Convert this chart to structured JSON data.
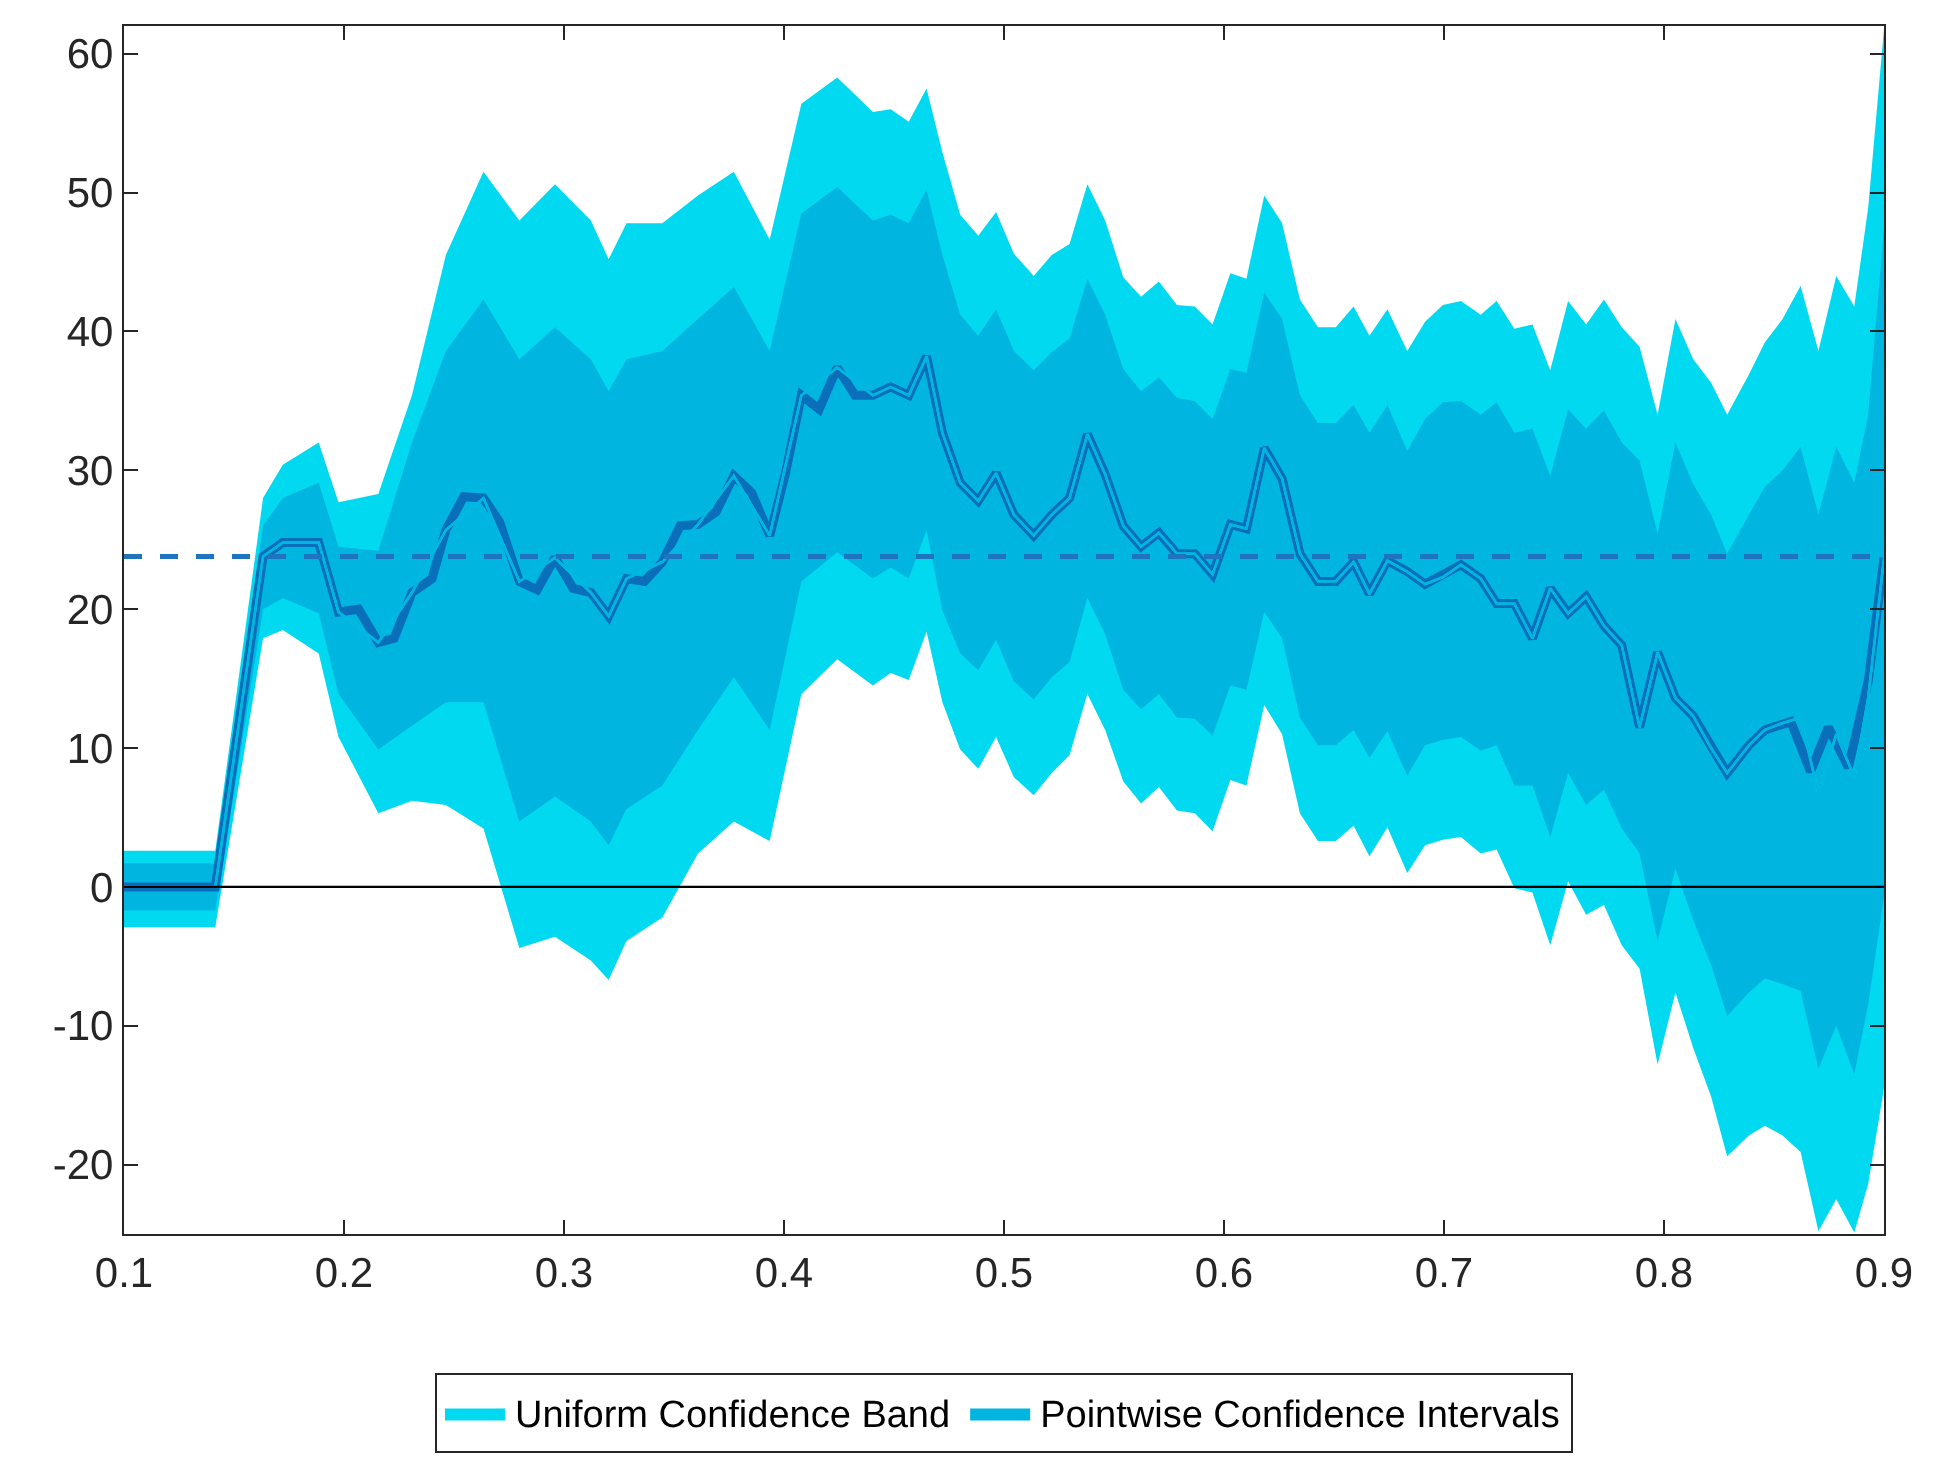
{
  "chart_data": {
    "type": "line",
    "xlim": [
      0.1,
      0.9
    ],
    "xticks": [
      {
        "value": 0.1,
        "label": "0.1"
      },
      {
        "value": 0.2,
        "label": "0.2"
      },
      {
        "value": 0.3,
        "label": "0.3"
      },
      {
        "value": 0.4,
        "label": "0.4"
      },
      {
        "value": 0.5,
        "label": "0.5"
      },
      {
        "value": 0.6,
        "label": "0.6"
      },
      {
        "value": 0.7,
        "label": "0.7"
      },
      {
        "value": 0.8,
        "label": "0.8"
      },
      {
        "value": 0.9,
        "label": "0.9"
      }
    ],
    "ylim": [
      -25,
      62
    ],
    "yticks": [
      -20,
      -10,
      0,
      10,
      20,
      30,
      40,
      50,
      60
    ],
    "legend": "bottom",
    "marker": "none",
    "series": [
      {
        "name": "Uniform Confidence Band",
        "color": "#00d9f0",
        "x": [
          0.1,
          0.1415,
          0.1632,
          0.1722,
          0.1885,
          0.1975,
          0.2156,
          0.2309,
          0.2463,
          0.2634,
          0.2797,
          0.2959,
          0.3122,
          0.3203,
          0.3284,
          0.3447,
          0.3609,
          0.3772,
          0.3935,
          0.4079,
          0.4242,
          0.4404,
          0.4485,
          0.4567,
          0.4648,
          0.472,
          0.4801,
          0.4883,
          0.4964,
          0.5045,
          0.5135,
          0.5217,
          0.5298,
          0.5379,
          0.546,
          0.5542,
          0.5623,
          0.5704,
          0.5786,
          0.5867,
          0.5948,
          0.6029,
          0.6102,
          0.6183,
          0.6264,
          0.6345,
          0.6427,
          0.6508,
          0.6589,
          0.6661,
          0.6743,
          0.6833,
          0.6914,
          0.6995,
          0.7077,
          0.7167,
          0.7239,
          0.732,
          0.7402,
          0.7483,
          0.7564,
          0.7646,
          0.7727,
          0.7808,
          0.7889,
          0.7971,
          0.8052,
          0.8133,
          0.8214,
          0.8287,
          0.8386,
          0.8458,
          0.8539,
          0.8621,
          0.8702,
          0.8783,
          0.8865,
          0.8928,
          0.9
        ],
        "values": [
          0,
          0,
          23.8,
          24.8,
          24.8,
          19.8,
          17.6,
          21.2,
          25.7,
          28,
          22,
          23.7,
          21.2,
          19.5,
          22.2,
          23.4,
          26.1,
          29.6,
          25.3,
          35.4,
          37.4,
          35.4,
          36,
          35.4,
          38.2,
          32.7,
          29.1,
          27.8,
          29.8,
          26.8,
          25.3,
          26.8,
          28,
          32.6,
          29.7,
          26,
          24.5,
          25.5,
          24,
          24,
          22.5,
          26.1,
          25.8,
          31.6,
          29.4,
          24,
          22,
          22,
          23.4,
          21.1,
          23.5,
          22.7,
          21.8,
          22.3,
          23.2,
          22.2,
          20.4,
          20.4,
          17.9,
          21.5,
          19.7,
          20.9,
          18.8,
          17.4,
          11.5,
          16.9,
          13.6,
          12.3,
          10,
          8.2,
          10.2,
          11.3,
          11.8,
          12.2,
          6.7,
          11,
          7.9,
          13.6,
          23.7
        ],
        "upper": [
          2.6,
          2.6,
          28,
          30.4,
          32,
          27.7,
          28.3,
          35.4,
          45.5,
          51.5,
          48,
          50.6,
          48,
          45.2,
          47.8,
          47.8,
          49.8,
          51.5,
          46.6,
          56.4,
          58.3,
          55.8,
          56,
          55.1,
          57.5,
          52.9,
          48.4,
          46.9,
          48.6,
          45.6,
          44,
          45.5,
          46.3,
          50.6,
          48,
          43.9,
          42.5,
          43.6,
          41.9,
          41.8,
          40.5,
          44.2,
          43.8,
          49.8,
          47.8,
          42.3,
          40.3,
          40.3,
          41.8,
          39.7,
          41.6,
          38.6,
          40.7,
          41.9,
          42.2,
          41.2,
          42.2,
          40.2,
          40.5,
          37.2,
          42.2,
          40.5,
          42.3,
          40.3,
          38.9,
          34,
          40.9,
          38,
          36.3,
          34,
          36.9,
          39.2,
          40.9,
          43.3,
          38.6,
          44,
          41.8,
          48.9,
          61.8
        ],
        "lower": [
          -2.9,
          -2.9,
          17.9,
          18.5,
          16.8,
          10.8,
          5.3,
          6.2,
          5.9,
          4.2,
          -4.4,
          -3.6,
          -5.3,
          -6.7,
          -3.9,
          -2.2,
          2.4,
          4.7,
          3.3,
          13.9,
          16.4,
          14.5,
          15.4,
          14.9,
          18.4,
          13.3,
          9.9,
          8.5,
          10.8,
          7.9,
          6.6,
          8.2,
          9.5,
          13.9,
          11.3,
          7.6,
          6,
          7.2,
          5.5,
          5.3,
          4,
          7.7,
          7.3,
          13.1,
          11,
          5.3,
          3.3,
          3.3,
          4.4,
          2.2,
          4.3,
          1,
          3,
          3.4,
          3.6,
          2.4,
          2.7,
          -0.1,
          -0.4,
          -4.2,
          0.4,
          -2,
          -1.3,
          -4.2,
          -5.9,
          -12.8,
          -7.6,
          -11.6,
          -15.1,
          -19.4,
          -17.9,
          -17.2,
          -17.9,
          -19.1,
          -24.8,
          -22.5,
          -24.9,
          -21.4,
          -14.5
        ]
      },
      {
        "name": "Pointwise Confidence Intervals",
        "color": "#00b5e0",
        "x": [
          0.1,
          0.1415,
          0.1632,
          0.1722,
          0.1885,
          0.1975,
          0.2156,
          0.2309,
          0.2463,
          0.2634,
          0.2797,
          0.2959,
          0.3122,
          0.3203,
          0.3284,
          0.3447,
          0.3609,
          0.3772,
          0.3935,
          0.4079,
          0.4242,
          0.4404,
          0.4485,
          0.4567,
          0.4648,
          0.472,
          0.4801,
          0.4883,
          0.4964,
          0.5045,
          0.5135,
          0.5217,
          0.5298,
          0.5379,
          0.546,
          0.5542,
          0.5623,
          0.5704,
          0.5786,
          0.5867,
          0.5948,
          0.6029,
          0.6102,
          0.6183,
          0.6264,
          0.6345,
          0.6427,
          0.6508,
          0.6589,
          0.6661,
          0.6743,
          0.6833,
          0.6914,
          0.6995,
          0.7077,
          0.7167,
          0.7239,
          0.732,
          0.7402,
          0.7483,
          0.7564,
          0.7646,
          0.7727,
          0.7808,
          0.7889,
          0.7971,
          0.8052,
          0.8133,
          0.8214,
          0.8287,
          0.8386,
          0.8458,
          0.8539,
          0.8621,
          0.8702,
          0.8783,
          0.8865,
          0.8928,
          0.9
        ],
        "values": [
          0,
          0,
          23.8,
          24.8,
          24.8,
          19.8,
          17.6,
          21.2,
          25.7,
          28,
          22,
          23.7,
          21.2,
          19.5,
          22.2,
          23.4,
          26.1,
          29.6,
          25.3,
          35.4,
          37.4,
          35.4,
          36,
          35.4,
          38.2,
          32.7,
          29.1,
          27.8,
          29.8,
          26.8,
          25.3,
          26.8,
          28,
          32.6,
          29.7,
          26,
          24.5,
          25.5,
          24,
          24,
          22.5,
          26.1,
          25.8,
          31.6,
          29.4,
          24,
          22,
          22,
          23.4,
          21.1,
          23.5,
          22.7,
          21.8,
          22.3,
          23.2,
          22.2,
          20.4,
          20.4,
          17.9,
          21.5,
          19.7,
          20.9,
          18.8,
          17.4,
          11.5,
          16.9,
          13.6,
          12.3,
          10,
          8.2,
          10.2,
          11.3,
          11.8,
          12.2,
          6.7,
          11,
          7.9,
          13.6,
          23.7
        ],
        "upper": [
          1.7,
          1.7,
          26,
          28,
          29.1,
          24.5,
          24.2,
          32,
          38.6,
          42.3,
          38,
          40.3,
          38,
          35.7,
          38,
          38.6,
          40.9,
          43.2,
          38.6,
          48.5,
          50.4,
          48,
          48.4,
          47.8,
          50.2,
          45.5,
          41.2,
          39.7,
          41.6,
          38.6,
          37.2,
          38.5,
          39.5,
          43.8,
          41.2,
          37.3,
          35.7,
          36.7,
          35.2,
          35,
          33.7,
          37.3,
          37,
          42.8,
          40.9,
          35.4,
          33.4,
          33.4,
          34.7,
          32.7,
          34.7,
          31.4,
          33.7,
          34.9,
          35,
          34,
          34.9,
          32.7,
          33,
          29.6,
          34.4,
          33,
          34.3,
          32,
          30.7,
          25.4,
          32,
          29,
          26.8,
          24,
          26.8,
          28.8,
          30,
          31.7,
          26.8,
          31.7,
          29.1,
          34,
          47.5
        ],
        "lower": [
          -1.7,
          -1.7,
          20,
          20.8,
          19.7,
          13.9,
          9.9,
          11.6,
          13.3,
          13.3,
          4.7,
          6.5,
          4.7,
          3,
          5.6,
          7.3,
          11.3,
          15.1,
          11.3,
          22,
          24.1,
          22.2,
          23,
          22.2,
          25.7,
          19.9,
          16.8,
          15.6,
          17.8,
          14.8,
          13.5,
          15.1,
          16.2,
          20.8,
          18.2,
          14.2,
          12.8,
          13.9,
          12.2,
          12.1,
          10.9,
          14.5,
          14.2,
          19.8,
          17.9,
          12.2,
          10.2,
          10.2,
          11.3,
          9.3,
          11.2,
          8,
          10.2,
          10.6,
          10.8,
          9.8,
          10.2,
          7.3,
          7.3,
          3.6,
          8.2,
          5.9,
          7,
          4.2,
          2.4,
          -3.9,
          1.3,
          -2.4,
          -5.6,
          -9.3,
          -7.6,
          -6.6,
          -7,
          -7.5,
          -13.1,
          -10,
          -13.5,
          -8.5,
          -0.7
        ]
      },
      {
        "type": "line",
        "color": "#0a6fbb",
        "line_style": "solid",
        "x": [
          0.1,
          0.1415,
          0.1632,
          0.1722,
          0.1885,
          0.1975,
          0.2066,
          0.2156,
          0.2228,
          0.2309,
          0.24,
          0.2463,
          0.2544,
          0.2634,
          0.2707,
          0.2797,
          0.2878,
          0.2959,
          0.3041,
          0.3122,
          0.3203,
          0.3284,
          0.3366,
          0.3447,
          0.3528,
          0.3609,
          0.3691,
          0.3772,
          0.3853,
          0.3935,
          0.4007,
          0.4079,
          0.416,
          0.4242,
          0.4323,
          0.4404,
          0.4485,
          0.4567,
          0.4648,
          0.472,
          0.4801,
          0.4883,
          0.4964,
          0.5045,
          0.5135,
          0.5217,
          0.5298,
          0.5379,
          0.546,
          0.5542,
          0.5623,
          0.5704,
          0.5786,
          0.5867,
          0.5948,
          0.6029,
          0.6102,
          0.6183,
          0.6264,
          0.6345,
          0.6427,
          0.6508,
          0.6589,
          0.6661,
          0.6743,
          0.6833,
          0.6914,
          0.7077,
          0.7167,
          0.7239,
          0.732,
          0.7402,
          0.7483,
          0.7564,
          0.7646,
          0.7727,
          0.7808,
          0.7889,
          0.7971,
          0.8052,
          0.8133,
          0.8287,
          0.8386,
          0.8458,
          0.8576,
          0.8666,
          0.8747,
          0.8838,
          0.8928,
          0.9
        ],
        "values": [
          0,
          0,
          23.8,
          24.8,
          24.8,
          19.8,
          20,
          17.6,
          17.9,
          21.2,
          22.2,
          25.7,
          28.1,
          28,
          26.3,
          22,
          21.4,
          23.7,
          21.5,
          21.2,
          19.5,
          22.2,
          22,
          23.4,
          26,
          26.1,
          27,
          29.6,
          28.4,
          25.3,
          29.8,
          35.4,
          34.4,
          37.4,
          35.4,
          35.4,
          36,
          35.4,
          38.2,
          32.7,
          29.1,
          27.8,
          29.8,
          26.8,
          25.3,
          26.8,
          28,
          32.6,
          29.7,
          26,
          24.5,
          25.5,
          24,
          24,
          22.5,
          26.1,
          25.8,
          31.6,
          29.4,
          24,
          22,
          22,
          23.4,
          21.1,
          23.5,
          22.7,
          21.8,
          23.2,
          22.2,
          20.4,
          20.4,
          17.9,
          21.5,
          19.7,
          20.9,
          18.8,
          17.4,
          11.5,
          16.9,
          13.6,
          12.3,
          8.2,
          10.2,
          11.3,
          11.9,
          8.3,
          11.5,
          8.6,
          14.8,
          23.7
        ]
      }
    ],
    "ref_lines": [
      {
        "axis": "y",
        "value": 0,
        "color": "#000000",
        "line_style": "solid"
      },
      {
        "axis": "y",
        "value": 23.8,
        "color": "#1f74bf",
        "line_style": "dashed"
      }
    ]
  }
}
